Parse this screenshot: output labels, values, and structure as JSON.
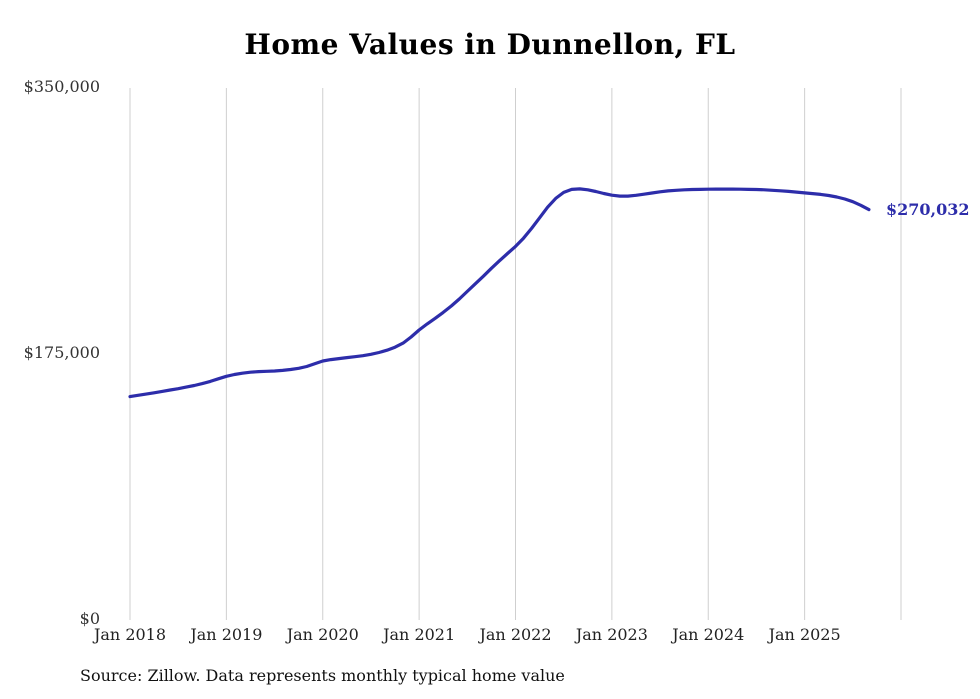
{
  "page": {
    "title": "Home Values in Dunnellon, FL",
    "source_note": "Source: Zillow. Data represents monthly typical home value"
  },
  "chart_data": {
    "type": "line",
    "title": "Home Values in Dunnellon, FL",
    "xlabel": "",
    "ylabel": "",
    "ylim": [
      0,
      350000
    ],
    "grid": "vertical-year-lines",
    "legend": "none",
    "line_color": "#2d2daa",
    "grid_color": "#cfcfcf",
    "end_label": "$270,032",
    "end_value": 270032,
    "y_ticks": [
      {
        "value": 350000,
        "label": "$350,000"
      },
      {
        "value": 175000,
        "label": "$175,000"
      },
      {
        "value": 0,
        "label": "$0"
      }
    ],
    "x_ticks": [
      "Jan 2018",
      "Jan 2019",
      "Jan 2020",
      "Jan 2021",
      "Jan 2022",
      "Jan 2023",
      "Jan 2024",
      "Jan 2025"
    ],
    "x": [
      "2018-01",
      "2018-02",
      "2018-03",
      "2018-04",
      "2018-05",
      "2018-06",
      "2018-07",
      "2018-08",
      "2018-09",
      "2018-10",
      "2018-11",
      "2018-12",
      "2019-01",
      "2019-02",
      "2019-03",
      "2019-04",
      "2019-05",
      "2019-06",
      "2019-07",
      "2019-08",
      "2019-09",
      "2019-10",
      "2019-11",
      "2019-12",
      "2020-01",
      "2020-02",
      "2020-03",
      "2020-04",
      "2020-05",
      "2020-06",
      "2020-07",
      "2020-08",
      "2020-09",
      "2020-10",
      "2020-11",
      "2020-12",
      "2021-01",
      "2021-02",
      "2021-03",
      "2021-04",
      "2021-05",
      "2021-06",
      "2021-07",
      "2021-08",
      "2021-09",
      "2021-10",
      "2021-11",
      "2021-12",
      "2022-01",
      "2022-02",
      "2022-03",
      "2022-04",
      "2022-05",
      "2022-06",
      "2022-07",
      "2022-08",
      "2022-09",
      "2022-10",
      "2022-11",
      "2022-12",
      "2023-01",
      "2023-02",
      "2023-03",
      "2023-04",
      "2023-05",
      "2023-06",
      "2023-07",
      "2023-08",
      "2023-09",
      "2023-10",
      "2023-11",
      "2023-12",
      "2024-01",
      "2024-02",
      "2024-03",
      "2024-04",
      "2024-05",
      "2024-06",
      "2024-07",
      "2024-08",
      "2024-09",
      "2024-10",
      "2024-11",
      "2024-12",
      "2025-01",
      "2025-02",
      "2025-03",
      "2025-04",
      "2025-05",
      "2025-06",
      "2025-07",
      "2025-08",
      "2025-09"
    ],
    "values": [
      147000,
      147800,
      148600,
      149500,
      150400,
      151300,
      152200,
      153200,
      154300,
      155500,
      157000,
      158700,
      160300,
      161500,
      162400,
      163000,
      163400,
      163600,
      163800,
      164200,
      164800,
      165600,
      166800,
      168600,
      170400,
      171300,
      172000,
      172600,
      173200,
      173900,
      174800,
      176000,
      177500,
      179500,
      182200,
      186200,
      190800,
      194800,
      198500,
      202400,
      206600,
      211200,
      216200,
      221200,
      226200,
      231400,
      236300,
      241100,
      245800,
      251200,
      257600,
      264600,
      271600,
      277400,
      281300,
      283300,
      283600,
      283000,
      281900,
      280600,
      279500,
      278900,
      278900,
      279400,
      280100,
      280900,
      281700,
      282300,
      282700,
      283000,
      283200,
      283300,
      283400,
      283500,
      283500,
      283500,
      283400,
      283300,
      283200,
      283000,
      282700,
      282400,
      282000,
      281500,
      281000,
      280500,
      280000,
      279300,
      278300,
      277000,
      275200,
      272800,
      270032
    ],
    "source_note": "Source: Zillow. Data represents monthly typical home value"
  }
}
